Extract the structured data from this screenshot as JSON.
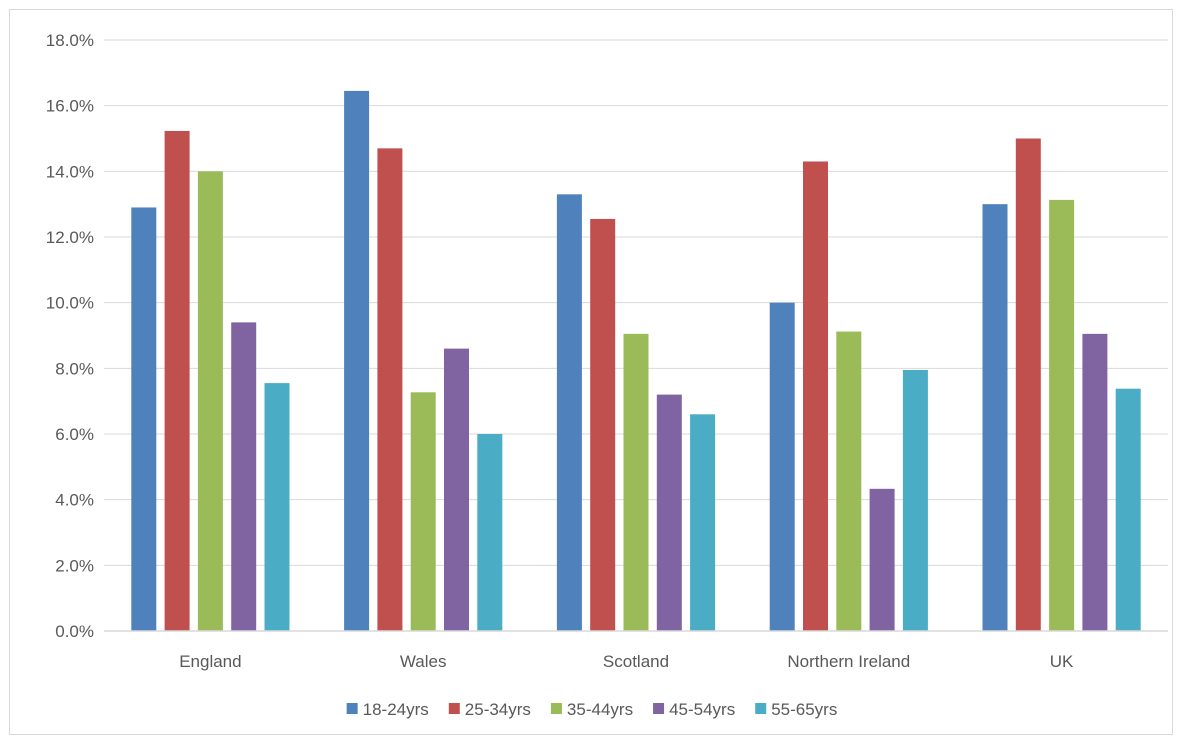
{
  "chart_data": {
    "type": "bar",
    "title": "",
    "xlabel": "",
    "ylabel": "",
    "categories": [
      "England",
      "Wales",
      "Scotland",
      "Northern Ireland",
      "UK"
    ],
    "ylim": [
      0,
      18
    ],
    "yticks": [
      0,
      2,
      4,
      6,
      8,
      10,
      12,
      14,
      16,
      18
    ],
    "ytick_labels": [
      "0.0%",
      "2.0%",
      "4.0%",
      "6.0%",
      "8.0%",
      "10.0%",
      "12.0%",
      "14.0%",
      "16.0%",
      "18.0%"
    ],
    "grid": true,
    "legend_position": "bottom",
    "series": [
      {
        "name": "18-24yrs",
        "color": "#4f81bd",
        "values": [
          12.9,
          16.45,
          13.3,
          10.0,
          13.0
        ]
      },
      {
        "name": "25-34yrs",
        "color": "#c0504d",
        "values": [
          15.23,
          14.7,
          12.55,
          14.3,
          15.0
        ]
      },
      {
        "name": "35-44yrs",
        "color": "#9bbb59",
        "values": [
          14.0,
          7.27,
          9.05,
          9.12,
          13.13
        ]
      },
      {
        "name": "45-54yrs",
        "color": "#8064a2",
        "values": [
          9.4,
          8.6,
          7.2,
          4.33,
          9.05
        ]
      },
      {
        "name": "55-65yrs",
        "color": "#4bacc6",
        "values": [
          7.55,
          6.0,
          6.6,
          7.95,
          7.38
        ]
      }
    ]
  }
}
